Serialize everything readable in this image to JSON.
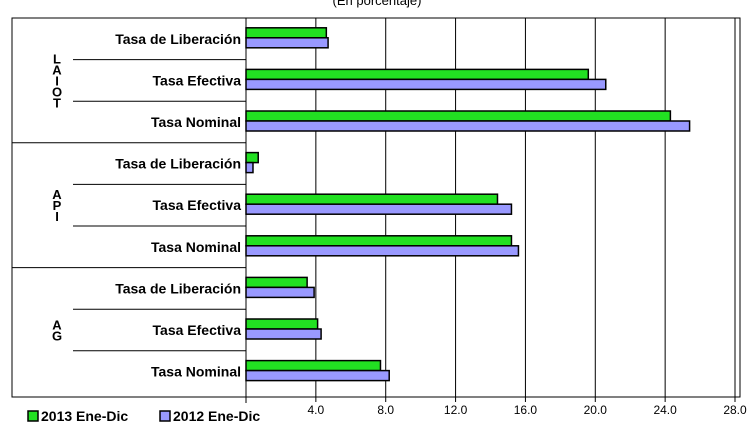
{
  "subtitle": "(En porcentaje)",
  "chart_data": {
    "type": "bar",
    "orientation": "horizontal",
    "xlim": [
      0,
      28
    ],
    "xticks": [
      "4.0",
      "8.0",
      "12.0",
      "16.0",
      "20.0",
      "24.0",
      "28.0"
    ],
    "xtick_values": [
      4,
      8,
      12,
      16,
      20,
      24,
      28
    ],
    "grid": true,
    "legend_position": "bottom-left",
    "groups": [
      {
        "label_chars": [
          "L",
          "A",
          "I",
          "O",
          "T"
        ],
        "categories": [
          "Tasa de Liberación",
          "Tasa Efectiva",
          "Tasa Nominal"
        ]
      },
      {
        "label_chars": [
          "A",
          "P",
          "I"
        ],
        "categories": [
          "Tasa de Liberación",
          "Tasa Efectiva",
          "Tasa Nominal"
        ]
      },
      {
        "label_chars": [
          "A",
          "G"
        ],
        "categories": [
          "Tasa de Liberación",
          "Tasa Efectiva",
          "Tasa Nominal"
        ]
      }
    ],
    "series": [
      {
        "name": "2013 Ene-Dic",
        "color": "#22e022",
        "values": [
          4.6,
          19.6,
          24.3,
          0.7,
          14.4,
          15.2,
          3.5,
          4.1,
          7.7
        ]
      },
      {
        "name": "2012 Ene-Dic",
        "color": "#9999ff",
        "values": [
          4.7,
          20.6,
          25.4,
          0.4,
          15.2,
          15.6,
          3.9,
          4.3,
          8.2
        ]
      }
    ]
  }
}
